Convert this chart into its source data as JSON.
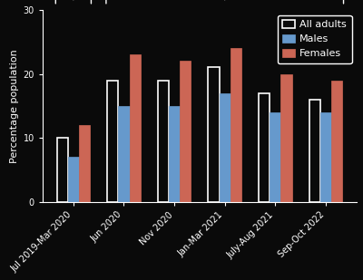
{
  "categories": [
    "Jul 2019-Mar 2020",
    "Jun 2020",
    "Nov 2020",
    "Jan-Mar 2021",
    "July-Aug 2021",
    "Sep-Oct 2022"
  ],
  "all_adults": [
    10,
    19,
    19,
    21,
    17,
    16
  ],
  "males": [
    7,
    15,
    15,
    17,
    14,
    14
  ],
  "females": [
    12,
    23,
    22,
    24,
    20,
    19
  ],
  "bar_color_all": "#ffffff",
  "bar_color_males": "#6699cc",
  "bar_color_females": "#cc6655",
  "background_color": "#0a0a0a",
  "text_color": "#ffffff",
  "ylabel": "Percentage population",
  "ylim": [
    0,
    30
  ],
  "yticks": [
    0,
    10,
    20,
    30
  ],
  "legend_labels": [
    "All adults",
    "Males",
    "Females"
  ],
  "bar_width": 0.22,
  "label_fontsize": 9,
  "axis_fontsize": 8,
  "tick_fontsize": 7,
  "legend_fontsize": 8
}
